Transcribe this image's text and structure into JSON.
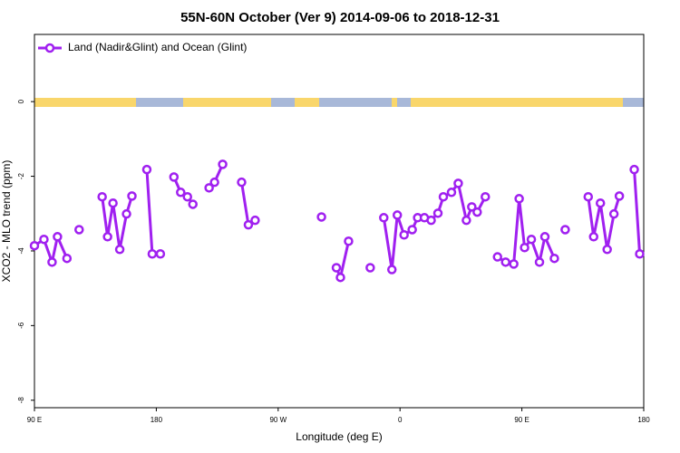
{
  "chart_data": {
    "type": "line",
    "title": "55N-60N October (Ver 9)   2014-09-06 to 2018-12-31",
    "x_label": "Longitude (deg E)",
    "y_label": "XCO2 - MLO trend (ppm)",
    "xlim": [
      90,
      540
    ],
    "ylim": [
      -8.2,
      1.8
    ],
    "xticks": [
      {
        "value": 90,
        "label": "90 E"
      },
      180,
      {
        "value": 270,
        "label": "90 W"
      },
      {
        "value": 360,
        "label": "0"
      },
      {
        "value": 450,
        "label": "90 E"
      },
      {
        "value": 540,
        "label": "180"
      }
    ],
    "yticks": [
      0,
      -2,
      -4,
      -6,
      -8
    ],
    "legend": "top-left",
    "x": [
      90,
      97,
      103,
      107,
      114,
      null,
      123,
      null,
      140,
      144,
      148,
      153,
      158,
      162,
      null,
      173,
      177,
      183,
      null,
      193,
      198,
      203,
      207,
      null,
      219,
      223,
      229,
      null,
      243,
      248,
      253,
      null,
      302,
      null,
      313,
      316,
      322,
      null,
      338,
      null,
      348,
      354,
      358,
      363,
      369,
      373,
      378,
      383,
      388,
      392,
      398,
      403,
      409,
      413,
      417,
      423,
      null,
      432,
      438,
      444,
      448,
      452,
      457,
      463,
      467,
      474,
      null,
      482,
      null,
      499,
      503,
      508,
      513,
      518,
      522,
      null,
      533,
      537
    ],
    "series": [
      {
        "name": "Land (Nadir&Glint) and Ocean (Glint)",
        "color": "#a020f0",
        "values": [
          -3.86,
          -3.69,
          -4.3,
          -3.62,
          -4.2,
          null,
          -3.43,
          null,
          -2.55,
          -3.62,
          -2.72,
          -3.96,
          -3.01,
          -2.53,
          null,
          -1.82,
          -4.08,
          -4.08,
          null,
          -2.02,
          -2.43,
          -2.55,
          -2.75,
          null,
          -2.31,
          -2.16,
          -1.68,
          null,
          -2.16,
          -3.3,
          -3.18,
          null,
          -3.09,
          null,
          -4.45,
          -4.71,
          -3.74,
          null,
          -4.45,
          null,
          -3.11,
          -4.5,
          -3.04,
          -3.57,
          -3.43,
          -3.11,
          -3.11,
          -3.18,
          -2.99,
          -2.55,
          -2.43,
          -2.19,
          -3.18,
          -2.82,
          -2.96,
          -2.55,
          null,
          -4.16,
          -4.3,
          -4.35,
          -2.6,
          -3.91,
          -3.69,
          -4.3,
          -3.62,
          -4.2,
          null,
          -3.43,
          null,
          -2.55,
          -3.62,
          -2.72,
          -3.96,
          -3.01,
          -2.53,
          null,
          -1.82,
          -4.08
        ]
      }
    ]
  }
}
